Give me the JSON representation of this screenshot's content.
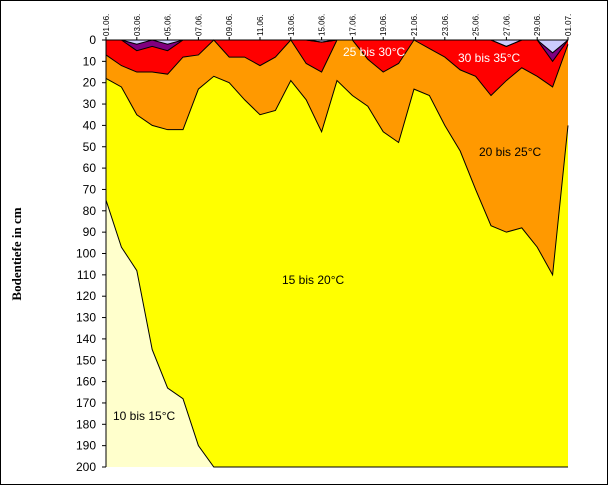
{
  "chart_data": {
    "type": "area",
    "title": "",
    "xlabel": "",
    "ylabel": "Bodentiefe in cm",
    "y_reversed": true,
    "ylim": [
      0,
      200
    ],
    "y_ticks": [
      0,
      10,
      20,
      30,
      40,
      50,
      60,
      70,
      80,
      90,
      100,
      110,
      120,
      130,
      140,
      150,
      160,
      170,
      180,
      190,
      200
    ],
    "x_tick_labels": [
      "01.06.",
      "03.06.",
      "05.06.",
      "07.06.",
      "09.06.",
      "11.06.",
      "13.06.",
      "15.06.",
      "17.06.",
      "19.06.",
      "21.06.",
      "23.06.",
      "25.06.",
      "27.06.",
      "29.06.",
      "01.07."
    ],
    "x": [
      "01.06.",
      "02.06.",
      "03.06.",
      "04.06.",
      "05.06.",
      "06.06.",
      "07.06.",
      "08.06.",
      "09.06.",
      "10.06.",
      "11.06.",
      "12.06.",
      "13.06.",
      "14.06.",
      "15.06.",
      "16.06.",
      "17.06.",
      "18.06.",
      "19.06.",
      "20.06.",
      "21.06.",
      "22.06.",
      "23.06.",
      "24.06.",
      "25.06.",
      "26.06.",
      "27.06.",
      "28.06.",
      "29.06.",
      "30.06.",
      "01.07."
    ],
    "boundaries": [
      {
        "name": "35°C",
        "values": [
          0,
          0,
          2,
          0,
          2,
          0,
          0,
          0,
          0,
          0,
          0,
          0,
          0,
          0,
          1,
          0,
          0,
          0,
          0,
          0,
          0,
          0,
          0,
          0,
          0,
          0,
          3,
          0,
          0,
          6,
          0
        ]
      },
      {
        "name": "30°C",
        "values": [
          0,
          0,
          5,
          3,
          5,
          0,
          0,
          0,
          0,
          0,
          0,
          0,
          0,
          0,
          1,
          0,
          0,
          0,
          0,
          0,
          0,
          0,
          0,
          0,
          0,
          0,
          3,
          0,
          0,
          10,
          0
        ]
      },
      {
        "name": "25°C",
        "values": [
          7,
          12,
          15,
          15,
          16,
          8,
          7,
          0,
          8,
          8,
          12,
          8,
          0,
          11,
          15,
          0,
          0,
          9,
          15,
          11,
          0,
          4,
          8,
          14,
          17,
          26,
          19,
          13,
          17,
          22,
          2
        ]
      },
      {
        "name": "20°C",
        "values": [
          18,
          22,
          35,
          40,
          42,
          42,
          23,
          17,
          20,
          28,
          35,
          33,
          19,
          28,
          43,
          19,
          26,
          31,
          43,
          48,
          23,
          26,
          40,
          52,
          70,
          87,
          90,
          88,
          97,
          110,
          40
        ]
      },
      {
        "name": "15°C",
        "values": [
          75,
          97,
          108,
          145,
          163,
          168,
          190,
          200,
          200,
          200,
          200,
          200,
          200,
          200,
          200,
          200,
          200,
          200,
          200,
          200,
          200,
          200,
          200,
          200,
          200,
          200,
          200,
          200,
          200,
          200,
          200
        ]
      }
    ],
    "series": [
      {
        "name": "30 bis 35°C",
        "color": "#800080"
      },
      {
        "name": "25 bis 30°C",
        "color": "#ff0000"
      },
      {
        "name": "20 bis 25°C",
        "color": "#ff9900"
      },
      {
        "name": "15 bis 20°C",
        "color": "#ffff00"
      },
      {
        "name": "10 bis 15°C",
        "color": "#ffffcc"
      }
    ],
    "top_fill_color": "#ccccff",
    "band_labels": [
      {
        "text": "30 bis 35°C",
        "color": "#ffffff"
      },
      {
        "text": "25 bis 30°C",
        "color": "#ffffff"
      },
      {
        "text": "20 bis 25°C",
        "color": "#000000"
      },
      {
        "text": "15 bis 20°C",
        "color": "#000000"
      },
      {
        "text": "10 bis 15°C",
        "color": "#000000"
      }
    ]
  }
}
